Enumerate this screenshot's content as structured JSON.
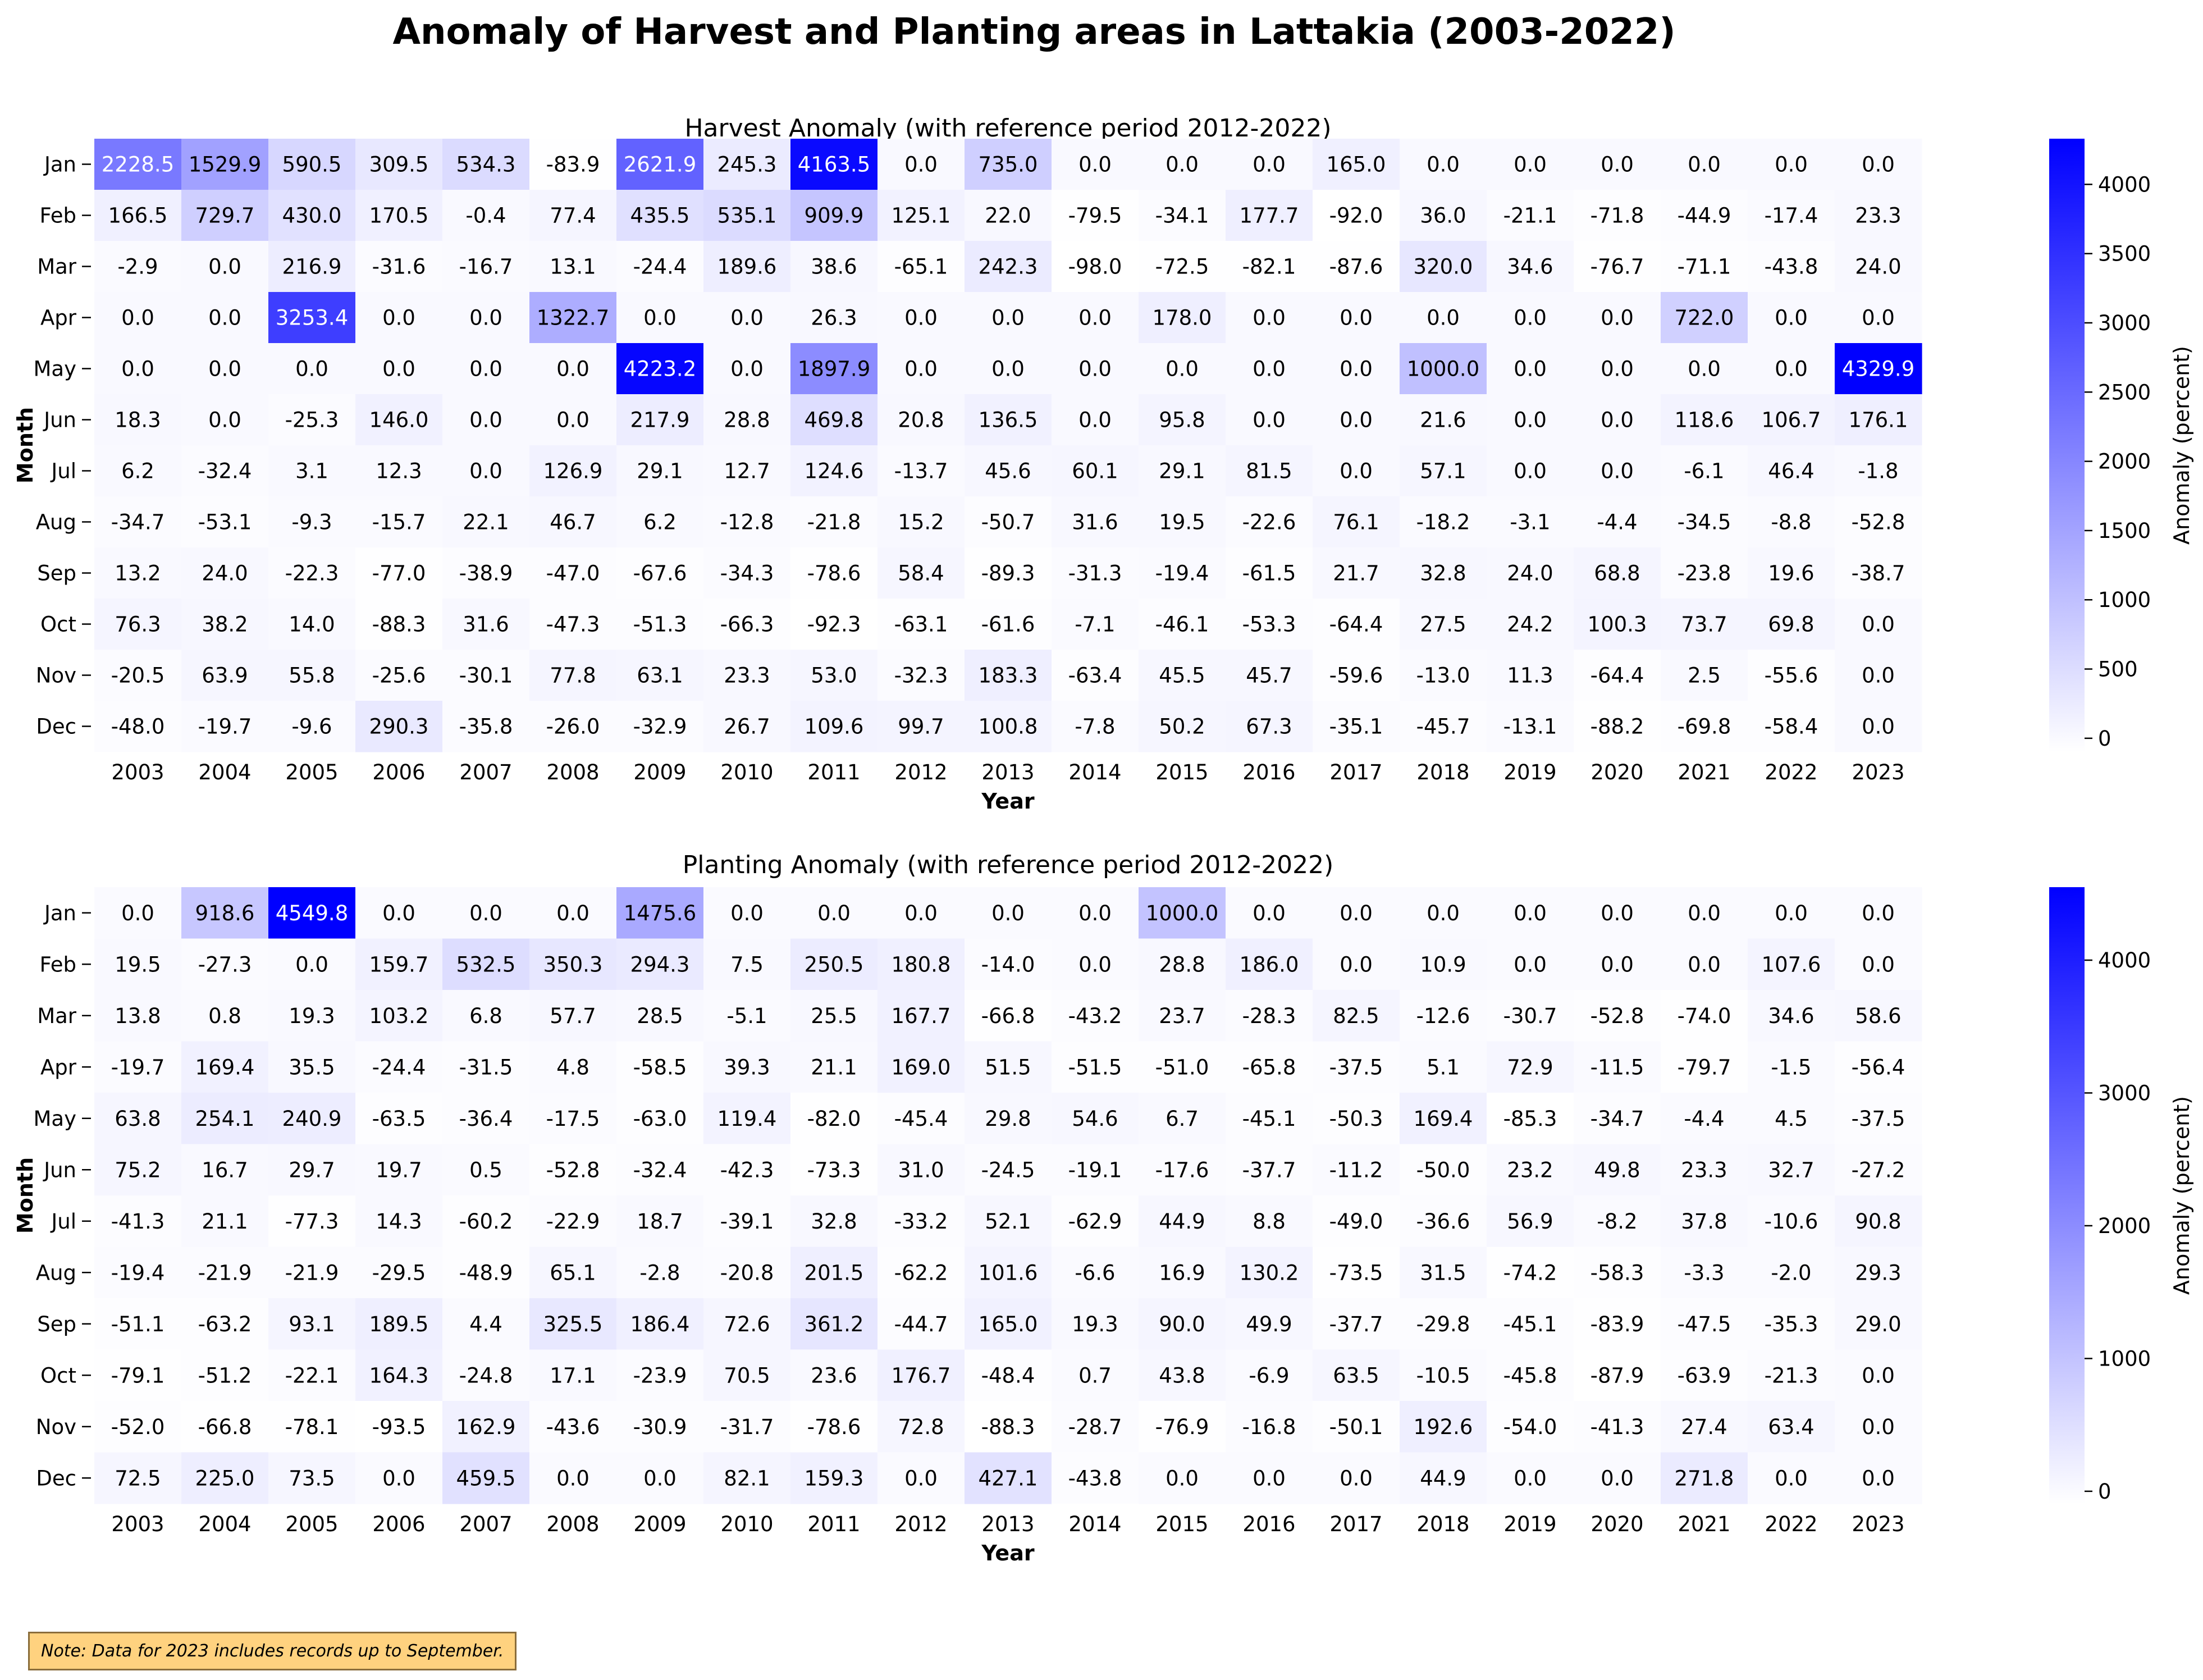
{
  "figure": {
    "title": "Anomaly of Harvest and Planting areas in Lattakia (2003-2022)",
    "note": "Note: Data for 2023 includes records up to September."
  },
  "style": {
    "cmap_low": "#ffffff",
    "cmap_high": "#0000ff",
    "text_dark": "#000000",
    "text_light": "#ffffff"
  },
  "chart_data": [
    {
      "type": "heatmap",
      "title": "Harvest Anomaly (with reference period 2012-2022)",
      "xlabel": "Year",
      "ylabel": "Month",
      "colorbar_label": "Anomaly (percent)",
      "colorbar_ticks": [
        0,
        500,
        1000,
        1500,
        2000,
        2500,
        3000,
        3500,
        4000
      ],
      "color_range": [
        -98.0,
        4329.9
      ],
      "x": [
        "2003",
        "2004",
        "2005",
        "2006",
        "2007",
        "2008",
        "2009",
        "2010",
        "2011",
        "2012",
        "2013",
        "2014",
        "2015",
        "2016",
        "2017",
        "2018",
        "2019",
        "2020",
        "2021",
        "2022",
        "2023"
      ],
      "y": [
        "Jan",
        "Feb",
        "Mar",
        "Apr",
        "May",
        "Jun",
        "Jul",
        "Aug",
        "Sep",
        "Oct",
        "Nov",
        "Dec"
      ],
      "values": [
        [
          2228.5,
          1529.9,
          590.5,
          309.5,
          534.3,
          -83.9,
          2621.9,
          245.3,
          4163.5,
          0.0,
          735.0,
          0.0,
          0.0,
          0.0,
          165.0,
          0.0,
          0.0,
          0.0,
          0.0,
          0.0,
          0.0
        ],
        [
          166.5,
          729.7,
          430.0,
          170.5,
          -0.4,
          77.4,
          435.5,
          535.1,
          909.9,
          125.1,
          22.0,
          -79.5,
          -34.1,
          177.7,
          -92.0,
          36.0,
          -21.1,
          -71.8,
          -44.9,
          -17.4,
          23.3
        ],
        [
          -2.9,
          0.0,
          216.9,
          -31.6,
          -16.7,
          13.1,
          -24.4,
          189.6,
          38.6,
          -65.1,
          242.3,
          -98.0,
          -72.5,
          -82.1,
          -87.6,
          320.0,
          34.6,
          -76.7,
          -71.1,
          -43.8,
          24.0
        ],
        [
          0.0,
          0.0,
          3253.4,
          0.0,
          0.0,
          1322.7,
          0.0,
          0.0,
          26.3,
          0.0,
          0.0,
          0.0,
          178.0,
          0.0,
          0.0,
          0.0,
          0.0,
          0.0,
          722.0,
          0.0,
          0.0
        ],
        [
          0.0,
          0.0,
          0.0,
          0.0,
          0.0,
          0.0,
          4223.2,
          0.0,
          1897.9,
          0.0,
          0.0,
          0.0,
          0.0,
          0.0,
          0.0,
          1000.0,
          0.0,
          0.0,
          0.0,
          0.0,
          4329.9
        ],
        [
          18.3,
          0.0,
          -25.3,
          146.0,
          0.0,
          0.0,
          217.9,
          28.8,
          469.8,
          20.8,
          136.5,
          0.0,
          95.8,
          0.0,
          0.0,
          21.6,
          0.0,
          0.0,
          118.6,
          106.7,
          176.1
        ],
        [
          6.2,
          -32.4,
          3.1,
          12.3,
          0.0,
          126.9,
          29.1,
          12.7,
          124.6,
          -13.7,
          45.6,
          60.1,
          29.1,
          81.5,
          0.0,
          57.1,
          0.0,
          0.0,
          -6.1,
          46.4,
          -1.8
        ],
        [
          -34.7,
          -53.1,
          -9.3,
          -15.7,
          22.1,
          46.7,
          6.2,
          -12.8,
          -21.8,
          15.2,
          -50.7,
          31.6,
          19.5,
          -22.6,
          76.1,
          -18.2,
          -3.1,
          -4.4,
          -34.5,
          -8.8,
          -52.8
        ],
        [
          13.2,
          24.0,
          -22.3,
          -77.0,
          -38.9,
          -47.0,
          -67.6,
          -34.3,
          -78.6,
          58.4,
          -89.3,
          -31.3,
          -19.4,
          -61.5,
          21.7,
          32.8,
          24.0,
          68.8,
          -23.8,
          19.6,
          -38.7
        ],
        [
          76.3,
          38.2,
          14.0,
          -88.3,
          31.6,
          -47.3,
          -51.3,
          -66.3,
          -92.3,
          -63.1,
          -61.6,
          -7.1,
          -46.1,
          -53.3,
          -64.4,
          27.5,
          24.2,
          100.3,
          73.7,
          69.8,
          0.0
        ],
        [
          -20.5,
          63.9,
          55.8,
          -25.6,
          -30.1,
          77.8,
          63.1,
          23.3,
          53.0,
          -32.3,
          183.3,
          -63.4,
          45.5,
          45.7,
          -59.6,
          -13.0,
          11.3,
          -64.4,
          2.5,
          -55.6,
          0.0
        ],
        [
          -48.0,
          -19.7,
          -9.6,
          290.3,
          -35.8,
          -26.0,
          -32.9,
          26.7,
          109.6,
          99.7,
          100.8,
          -7.8,
          50.2,
          67.3,
          -35.1,
          -45.7,
          -13.1,
          -88.2,
          -69.8,
          -58.4,
          0.0
        ]
      ]
    },
    {
      "type": "heatmap",
      "title": "Planting Anomaly (with reference period 2012-2022)",
      "xlabel": "Year",
      "ylabel": "Month",
      "colorbar_label": "Anomaly (percent)",
      "colorbar_ticks": [
        0,
        1000,
        2000,
        3000,
        4000
      ],
      "color_range": [
        -93.5,
        4549.8
      ],
      "x": [
        "2003",
        "2004",
        "2005",
        "2006",
        "2007",
        "2008",
        "2009",
        "2010",
        "2011",
        "2012",
        "2013",
        "2014",
        "2015",
        "2016",
        "2017",
        "2018",
        "2019",
        "2020",
        "2021",
        "2022",
        "2023"
      ],
      "y": [
        "Jan",
        "Feb",
        "Mar",
        "Apr",
        "May",
        "Jun",
        "Jul",
        "Aug",
        "Sep",
        "Oct",
        "Nov",
        "Dec"
      ],
      "values": [
        [
          0.0,
          918.6,
          4549.8,
          0.0,
          0.0,
          0.0,
          1475.6,
          0.0,
          0.0,
          0.0,
          0.0,
          0.0,
          1000.0,
          0.0,
          0.0,
          0.0,
          0.0,
          0.0,
          0.0,
          0.0,
          0.0
        ],
        [
          19.5,
          -27.3,
          0.0,
          159.7,
          532.5,
          350.3,
          294.3,
          7.5,
          250.5,
          180.8,
          -14.0,
          0.0,
          28.8,
          186.0,
          0.0,
          10.9,
          0.0,
          0.0,
          0.0,
          107.6,
          0.0
        ],
        [
          13.8,
          0.8,
          19.3,
          103.2,
          6.8,
          57.7,
          28.5,
          -5.1,
          25.5,
          167.7,
          -66.8,
          -43.2,
          23.7,
          -28.3,
          82.5,
          -12.6,
          -30.7,
          -52.8,
          -74.0,
          34.6,
          58.6
        ],
        [
          -19.7,
          169.4,
          35.5,
          -24.4,
          -31.5,
          4.8,
          -58.5,
          39.3,
          21.1,
          169.0,
          51.5,
          -51.5,
          -51.0,
          -65.8,
          -37.5,
          5.1,
          72.9,
          -11.5,
          -79.7,
          -1.5,
          -56.4
        ],
        [
          63.8,
          254.1,
          240.9,
          -63.5,
          -36.4,
          -17.5,
          -63.0,
          119.4,
          -82.0,
          -45.4,
          29.8,
          54.6,
          6.7,
          -45.1,
          -50.3,
          169.4,
          -85.3,
          -34.7,
          -4.4,
          4.5,
          -37.5
        ],
        [
          75.2,
          16.7,
          29.7,
          19.7,
          0.5,
          -52.8,
          -32.4,
          -42.3,
          -73.3,
          31.0,
          -24.5,
          -19.1,
          -17.6,
          -37.7,
          -11.2,
          -50.0,
          23.2,
          49.8,
          23.3,
          32.7,
          -27.2
        ],
        [
          -41.3,
          21.1,
          -77.3,
          14.3,
          -60.2,
          -22.9,
          18.7,
          -39.1,
          32.8,
          -33.2,
          52.1,
          -62.9,
          44.9,
          8.8,
          -49.0,
          -36.6,
          56.9,
          -8.2,
          37.8,
          -10.6,
          90.8
        ],
        [
          -19.4,
          -21.9,
          -21.9,
          -29.5,
          -48.9,
          65.1,
          -2.8,
          -20.8,
          201.5,
          -62.2,
          101.6,
          -6.6,
          16.9,
          130.2,
          -73.5,
          31.5,
          -74.2,
          -58.3,
          -3.3,
          -2.0,
          29.3
        ],
        [
          -51.1,
          -63.2,
          93.1,
          189.5,
          4.4,
          325.5,
          186.4,
          72.6,
          361.2,
          -44.7,
          165.0,
          19.3,
          90.0,
          49.9,
          -37.7,
          -29.8,
          -45.1,
          -83.9,
          -47.5,
          -35.3,
          29.0
        ],
        [
          -79.1,
          -51.2,
          -22.1,
          164.3,
          -24.8,
          17.1,
          -23.9,
          70.5,
          23.6,
          176.7,
          -48.4,
          0.7,
          43.8,
          -6.9,
          63.5,
          -10.5,
          -45.8,
          -87.9,
          -63.9,
          -21.3,
          0.0
        ],
        [
          -52.0,
          -66.8,
          -78.1,
          -93.5,
          162.9,
          -43.6,
          -30.9,
          -31.7,
          -78.6,
          72.8,
          -88.3,
          -28.7,
          -76.9,
          -16.8,
          -50.1,
          192.6,
          -54.0,
          -41.3,
          27.4,
          63.4,
          0.0
        ],
        [
          72.5,
          225.0,
          73.5,
          0.0,
          459.5,
          0.0,
          0.0,
          82.1,
          159.3,
          0.0,
          427.1,
          -43.8,
          0.0,
          0.0,
          0.0,
          44.9,
          0.0,
          0.0,
          271.8,
          0.0,
          0.0
        ]
      ]
    }
  ]
}
